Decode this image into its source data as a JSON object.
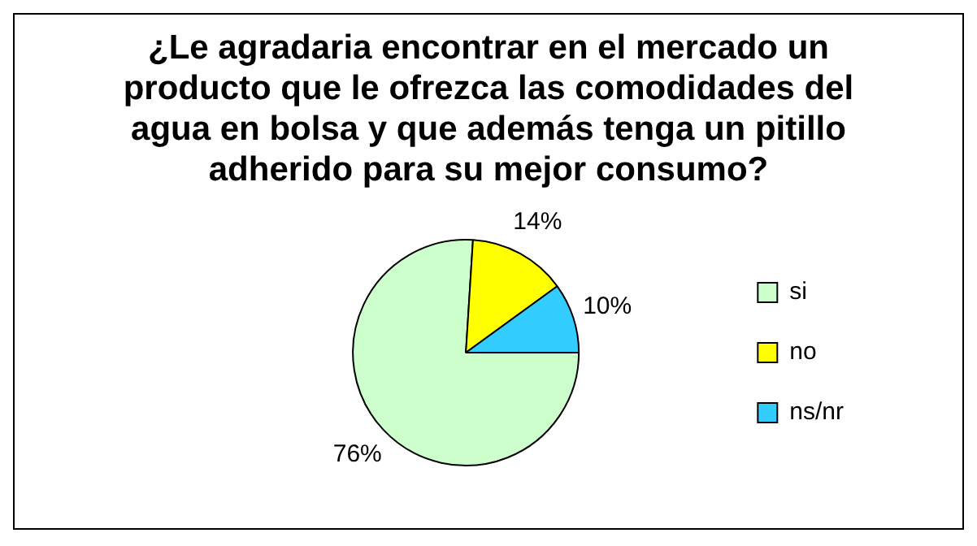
{
  "chart_data": {
    "type": "pie",
    "title": "¿Le agradaria encontrar en el mercado un producto que le ofrezca las comodidades del agua en bolsa y que además tenga un pitillo adherido para su mejor consumo?",
    "categories": [
      "si",
      "no",
      "ns/nr"
    ],
    "values": [
      76,
      14,
      10
    ],
    "colors": [
      "#ccffcc",
      "#ffff00",
      "#33ccff"
    ],
    "value_labels": [
      "76%",
      "14%",
      "10%"
    ],
    "legend": "right"
  }
}
